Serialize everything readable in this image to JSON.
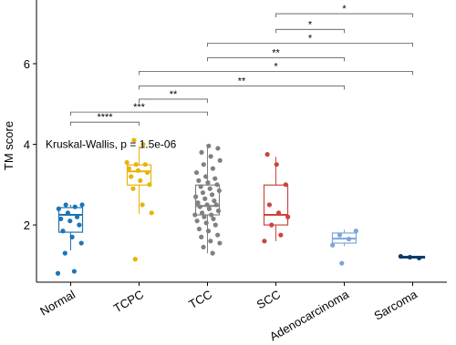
{
  "chart_data": {
    "type": "box",
    "y_label": "TM score",
    "annotation": "Kruskal-Wallis, p = 1.5e-06",
    "annotation_y": 4.0,
    "ylim": [
      0.58,
      7.58
    ],
    "yticks": [
      2,
      4,
      6
    ],
    "categories": [
      "Normal",
      "TCPC",
      "TCC",
      "SCC",
      "Adenocarcinoma",
      "Sarcoma"
    ],
    "series": [
      {
        "name": "Normal",
        "color": "#1f74b4",
        "q1": 1.82,
        "median": 2.25,
        "q3": 2.43,
        "whisker_low": 1.37,
        "whisker_high": 2.5,
        "points": [
          0.8,
          0.85,
          1.3,
          1.55,
          1.7,
          1.85,
          2.0,
          2.1,
          2.15,
          2.2,
          2.3,
          2.4,
          2.45,
          2.5,
          2.5
        ]
      },
      {
        "name": "TCPC",
        "color": "#e6b40c",
        "q1": 2.99,
        "median": 3.33,
        "q3": 3.49,
        "whisker_low": 2.27,
        "whisker_high": 3.96,
        "points": [
          1.15,
          2.3,
          2.5,
          2.9,
          3.0,
          3.1,
          3.2,
          3.3,
          3.35,
          3.4,
          3.5,
          3.5,
          3.55,
          4.0,
          4.1
        ]
      },
      {
        "name": "TCC",
        "color": "#808080",
        "q1": 2.25,
        "median": 2.47,
        "q3": 2.99,
        "whisker_low": 1.3,
        "whisker_high": 3.96,
        "points": [
          1.3,
          1.45,
          1.55,
          1.6,
          1.7,
          1.75,
          1.85,
          1.9,
          2.0,
          2.05,
          2.1,
          2.15,
          2.2,
          2.25,
          2.25,
          2.3,
          2.35,
          2.4,
          2.45,
          2.5,
          2.5,
          2.55,
          2.6,
          2.65,
          2.7,
          2.75,
          2.8,
          2.85,
          2.9,
          2.95,
          3.0,
          3.05,
          3.1,
          3.15,
          3.2,
          3.3,
          3.4,
          3.5,
          3.6,
          3.7,
          3.8,
          3.9,
          3.96
        ]
      },
      {
        "name": "SCC",
        "color": "#c8463d",
        "q1": 2.0,
        "median": 2.25,
        "q3": 2.99,
        "whisker_low": 1.6,
        "whisker_high": 3.69,
        "points": [
          1.6,
          1.75,
          2.0,
          2.2,
          2.3,
          2.5,
          3.0,
          3.5,
          3.75
        ]
      },
      {
        "name": "Adenocarcinoma",
        "color": "#7ba6da",
        "q1": 1.55,
        "median": 1.66,
        "q3": 1.8,
        "whisker_low": 1.47,
        "whisker_high": 1.88,
        "points": [
          1.05,
          1.5,
          1.65,
          1.75,
          1.85
        ]
      },
      {
        "name": "Sarcoma",
        "color": "#0b3a6b",
        "q1": 1.18,
        "median": 1.2,
        "q3": 1.22,
        "whisker_low": 1.17,
        "whisker_high": 1.23,
        "points": [
          1.18,
          1.2,
          1.22
        ]
      }
    ],
    "comparisons": [
      {
        "from": "Normal",
        "to": "TCPC",
        "y": 4.55,
        "label": "****"
      },
      {
        "from": "Normal",
        "to": "TCC",
        "y": 4.8,
        "label": "***"
      },
      {
        "from": "TCPC",
        "to": "TCC",
        "y": 5.12,
        "label": "**"
      },
      {
        "from": "TCPC",
        "to": "Adenocarcinoma",
        "y": 5.45,
        "label": "**"
      },
      {
        "from": "TCPC",
        "to": "Sarcoma",
        "y": 5.81,
        "label": "*"
      },
      {
        "from": "TCC",
        "to": "Adenocarcinoma",
        "y": 6.15,
        "label": "**"
      },
      {
        "from": "TCC",
        "to": "Sarcoma",
        "y": 6.51,
        "label": "*"
      },
      {
        "from": "SCC",
        "to": "Adenocarcinoma",
        "y": 6.85,
        "label": "*"
      },
      {
        "from": "SCC",
        "to": "Sarcoma",
        "y": 7.24,
        "label": "*"
      }
    ]
  }
}
